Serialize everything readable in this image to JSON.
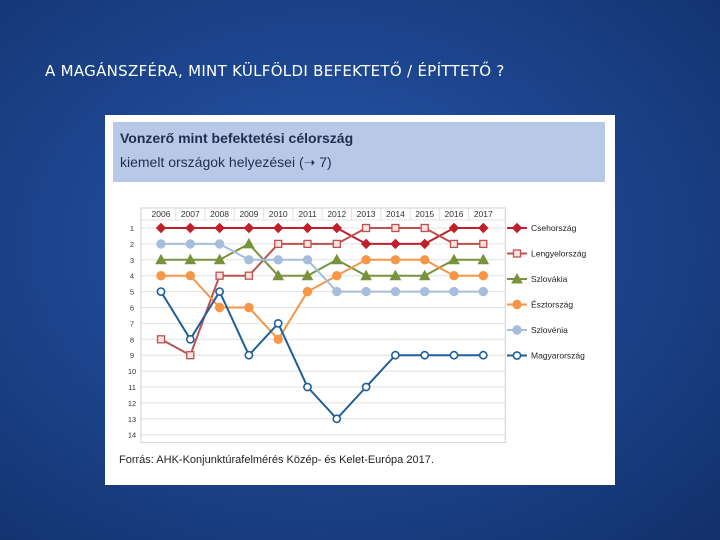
{
  "slide": {
    "title": "A MAGÁNSZFÉRA, MINT KÜLFÖLDI BEFEKTETŐ / ÉPÍTTETŐ ?"
  },
  "panel": {
    "title": "Vonzerő mint befektetési célország",
    "subtitle": "kiemelt országok helyezései (➝ 7)",
    "source": "Forrás: AHK-Konjunktúrafelmérés Közép- és Kelet-Európa 2017."
  },
  "chart_data": {
    "type": "line",
    "title": "Vonzerő mint befektetési célország",
    "subtitle": "kiemelt országok helyezései (➝ 7)",
    "categories": [
      "2006",
      "2007",
      "2008",
      "2009",
      "2010",
      "2011",
      "2012",
      "2013",
      "2014",
      "2015",
      "2016",
      "2017"
    ],
    "yticks": [
      "1",
      "2",
      "3",
      "4",
      "5",
      "6",
      "7",
      "8",
      "9",
      "10",
      "11",
      "12",
      "13",
      "14"
    ],
    "ylim": [
      1,
      14
    ],
    "yaxis_inverted": true,
    "legend_position": "right",
    "series": [
      {
        "name": "Csehország",
        "color": "#c0202a",
        "marker": "diamond",
        "values": [
          1,
          1,
          1,
          1,
          1,
          1,
          1,
          2,
          2,
          2,
          1,
          1
        ]
      },
      {
        "name": "Lengyelország",
        "color": "#c0504d",
        "marker": "square-open",
        "values": [
          8,
          9,
          4,
          4,
          2,
          2,
          2,
          1,
          1,
          1,
          2,
          2
        ]
      },
      {
        "name": "Szlovákia",
        "color": "#77933c",
        "marker": "triangle",
        "values": [
          3,
          3,
          3,
          2,
          4,
          4,
          3,
          4,
          4,
          4,
          3,
          3
        ]
      },
      {
        "name": "Észtország",
        "color": "#f79646",
        "marker": "circle",
        "values": [
          4,
          4,
          6,
          6,
          8,
          5,
          4,
          3,
          3,
          3,
          4,
          4
        ]
      },
      {
        "name": "Szlovénia",
        "color": "#a6bddb",
        "marker": "circle",
        "values": [
          2,
          2,
          2,
          3,
          3,
          3,
          5,
          5,
          5,
          5,
          5,
          5
        ]
      },
      {
        "name": "Magyarország",
        "color": "#1f5f99",
        "marker": "circle-open",
        "values": [
          5,
          8,
          5,
          9,
          7,
          11,
          13,
          11,
          9,
          9,
          9,
          9
        ]
      }
    ]
  }
}
